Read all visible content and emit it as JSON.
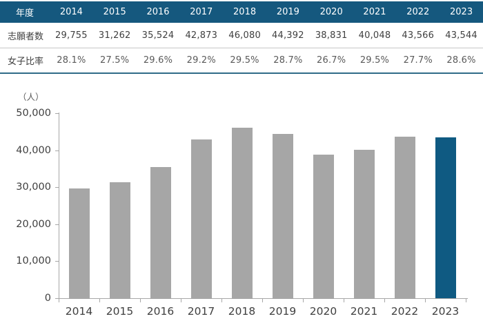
{
  "colors": {
    "header_bg": "#15587E",
    "header_text": "#FFFFFF",
    "accent": "#0F5A82",
    "bar_gray": "#A6A6A6",
    "table_bottom_border": "#2E6B87",
    "row_divider": "#C6C6C6",
    "axis": "#A6A6A6",
    "text": "#3F3F3F"
  },
  "table": {
    "header_label": "年度",
    "years": [
      "2014",
      "2015",
      "2016",
      "2017",
      "2018",
      "2019",
      "2020",
      "2021",
      "2022",
      "2023"
    ],
    "rows": [
      {
        "label": "志願者数",
        "kind": "count",
        "values": [
          "29,755",
          "31,262",
          "35,524",
          "42,873",
          "46,080",
          "44,392",
          "38,831",
          "40,048",
          "43,566",
          "43,544"
        ]
      },
      {
        "label": "女子比率",
        "kind": "percent",
        "values": [
          "28.1%",
          "27.5%",
          "29.6%",
          "29.2%",
          "29.5%",
          "28.7%",
          "26.7%",
          "29.5%",
          "27.7%",
          "28.6%"
        ]
      }
    ]
  },
  "chart_data": {
    "type": "bar",
    "title": "",
    "unit_label": "（人）",
    "xlabel": "",
    "ylabel": "人",
    "categories": [
      "2014",
      "2015",
      "2016",
      "2017",
      "2018",
      "2019",
      "2020",
      "2021",
      "2022",
      "2023"
    ],
    "values": [
      29755,
      31262,
      35524,
      42873,
      46080,
      44392,
      38831,
      40048,
      43566,
      43544
    ],
    "ylim": [
      0,
      50000
    ],
    "ytick_interval": 10000,
    "ytick_labels": [
      "0",
      "10,000",
      "20,000",
      "30,000",
      "40,000",
      "50,000"
    ],
    "grid": false,
    "legend": false,
    "highlight_category": "2023",
    "bar_color": "#A6A6A6",
    "highlight_color": "#0F5A82"
  }
}
